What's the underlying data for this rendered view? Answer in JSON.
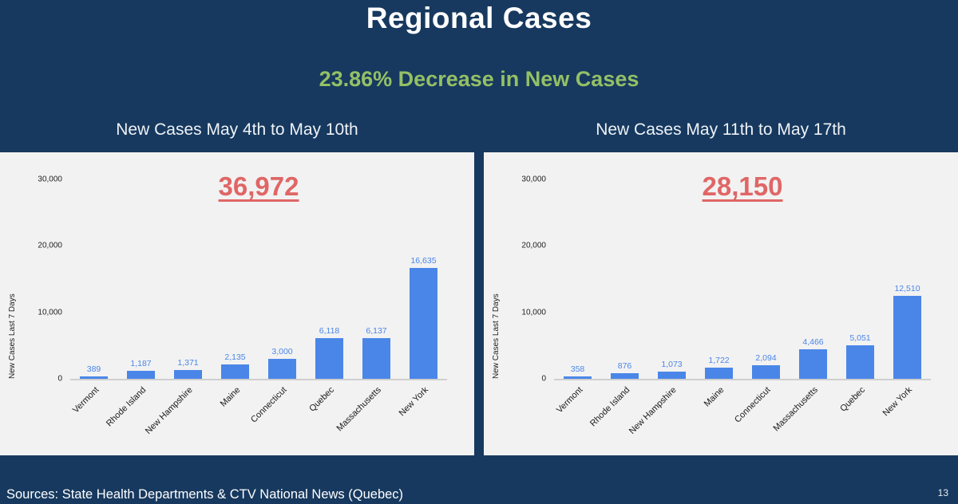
{
  "page": {
    "title": "Regional Cases",
    "subtitle": "23.86% Decrease in New Cases",
    "footer": "Sources: State Health Departments & CTV National News (Quebec)",
    "page_number": "13"
  },
  "colors": {
    "background": "#17395f",
    "accent_green": "#94c066",
    "bar_blue": "#4a86e8",
    "total_red": "#e06666",
    "card_bg": "#f2f2f2"
  },
  "chart_data": [
    {
      "type": "bar",
      "title": "New Cases May 4th to May 10th",
      "total_label": "36,972",
      "ylabel": "New Cases Last 7 Days",
      "xlabel": "",
      "ylim": [
        0,
        30000
      ],
      "ytick_labels": [
        "0",
        "10,000",
        "20,000",
        "30,000"
      ],
      "grid": false,
      "legend": "none",
      "categories": [
        "Vermont",
        "Rhode Island",
        "New Hampshire",
        "Maine",
        "Connecticut",
        "Quebec",
        "Massachusetts",
        "New York"
      ],
      "values": [
        389,
        1187,
        1371,
        2135,
        3000,
        6118,
        6137,
        16635
      ],
      "value_labels": [
        "389",
        "1,187",
        "1,371",
        "2,135",
        "3,000",
        "6,118",
        "6,137",
        "16,635"
      ]
    },
    {
      "type": "bar",
      "title": "New Cases May 11th to May 17th",
      "total_label": "28,150",
      "ylabel": "New Cases Last 7 Days",
      "xlabel": "",
      "ylim": [
        0,
        30000
      ],
      "ytick_labels": [
        "0",
        "10,000",
        "20,000",
        "30,000"
      ],
      "grid": false,
      "legend": "none",
      "categories": [
        "Vermont",
        "Rhode Island",
        "New Hampshire",
        "Maine",
        "Connecticut",
        "Massachusetts",
        "Quebec",
        "New York"
      ],
      "values": [
        358,
        876,
        1073,
        1722,
        2094,
        4466,
        5051,
        12510
      ],
      "value_labels": [
        "358",
        "876",
        "1,073",
        "1,722",
        "2,094",
        "4,466",
        "5,051",
        "12,510"
      ]
    }
  ]
}
